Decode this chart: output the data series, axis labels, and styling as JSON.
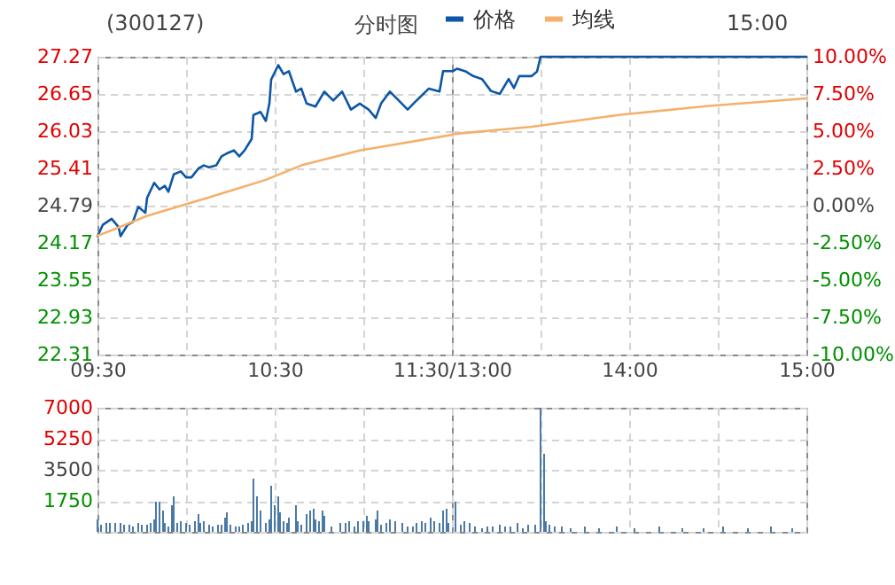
{
  "chart_data": [
    {
      "type": "line",
      "title": "(300127)",
      "subtitle": "分时图",
      "annotations": [
        "15:00"
      ],
      "xlim": [
        9.5,
        11.5
      ],
      "xticks": [
        {
          "value": 9.5,
          "label": "09:30"
        },
        {
          "value": 10,
          "label": null
        },
        {
          "value": 10.5,
          "label": "10:30"
        },
        {
          "value": 11,
          "label": null
        },
        {
          "value": 11.5,
          "label": "11:30/13:00"
        }
      ],
      "ylim": [
        22.31,
        27.27
      ],
      "yticks": [
        22.31,
        22.93,
        23.55,
        24.17,
        24.79,
        25.41,
        26.03,
        26.65,
        27.27
      ],
      "grid": true,
      "legend": "top",
      "series": [
        {
          "name": "价格",
          "color": "#0d56a6",
          "x": [
            9.5,
            9.53,
            9.58,
            9.62,
            9.63,
            9.67,
            9.7,
            9.73,
            9.77,
            9.78,
            9.82,
            9.85,
            9.88,
            9.9,
            9.93,
            9.97,
            10,
            10.03,
            10.07,
            10.1,
            10.13,
            10.17,
            10.2,
            10.23,
            10.27,
            10.3,
            10.33,
            10.37,
            10.38,
            10.42,
            10.45,
            10.47,
            10.48,
            10.52,
            10.55,
            10.58,
            10.62,
            10.65,
            10.68,
            10.73,
            10.78,
            10.83,
            10.88,
            10.93,
            10.98,
            11.03,
            11.07,
            11.1,
            11.15,
            11.2,
            11.25,
            11.3,
            11.37,
            11.43,
            11.45,
            11.5
          ],
          "values": [
            24.28,
            24.47,
            24.57,
            24.43,
            24.28,
            24.47,
            24.52,
            24.77,
            24.67,
            24.92,
            25.17,
            25.06,
            25.12,
            25.02,
            25.31,
            25.36,
            25.26,
            25.26,
            25.41,
            25.46,
            25.43,
            25.46,
            25.61,
            25.66,
            25.71,
            25.61,
            25.71,
            25.9,
            26.3,
            26.35,
            26.2,
            26.49,
            26.89,
            27.13,
            26.98,
            27.03,
            26.69,
            26.74,
            26.49,
            26.44,
            26.69,
            26.54,
            26.69,
            26.39,
            26.49,
            26.39,
            26.25,
            26.49,
            26.69,
            26.54,
            26.39,
            26.54,
            26.74,
            26.69,
            27.03,
            27.03
          ]
        },
        {
          "name": "均线",
          "color": "#f5b06a",
          "x": [
            9.5,
            9.58,
            9.78,
            10.12,
            10.45,
            10.65,
            10.98,
            11.5
          ],
          "values": [
            24.29,
            24.38,
            24.62,
            24.92,
            25.22,
            25.46,
            25.71,
            25.97
          ]
        }
      ]
    },
    {
      "type": "line",
      "grid": true,
      "xlim": [
        13,
        15
      ],
      "xticks": [
        {
          "value": 13,
          "label": null
        },
        {
          "value": 13.5,
          "label": null
        },
        {
          "value": 14,
          "label": "14:00"
        },
        {
          "value": 14.5,
          "label": null
        },
        {
          "value": 15,
          "label": "15:00"
        }
      ],
      "y2lim": [
        -10,
        10
      ],
      "y2ticks": [
        {
          "value": -10,
          "label": "-10.00%"
        },
        {
          "value": -7.5,
          "label": "-7.50%"
        },
        {
          "value": -5,
          "label": "-5.00%"
        },
        {
          "value": -2.5,
          "label": "-2.50%"
        },
        {
          "value": 0,
          "label": "0.00%"
        },
        {
          "value": 2.5,
          "label": "2.50%"
        },
        {
          "value": 5,
          "label": "5.00%"
        },
        {
          "value": 7.5,
          "label": "7.50%"
        },
        {
          "value": 10,
          "label": "10.00%"
        }
      ],
      "series": [
        {
          "color": "#0d56a6",
          "axis": "y2",
          "x": [
            13,
            13.03,
            13.08,
            13.12,
            13.17,
            13.22,
            13.27,
            13.32,
            13.35,
            13.38,
            13.45,
            13.48,
            13.5,
            15
          ],
          "values": [
            9.0,
            9.2,
            9.0,
            8.7,
            8.5,
            7.7,
            7.5,
            8.5,
            7.9,
            8.7,
            8.7,
            9.0,
            10,
            10
          ]
        },
        {
          "color": "#f5b06a",
          "axis": "y2",
          "x": [
            13,
            13.45,
            13.95,
            14.45,
            15
          ],
          "values": [
            4.8,
            5.3,
            6.1,
            6.7,
            7.2
          ]
        }
      ]
    },
    {
      "type": "bar",
      "color": "#4a79a5",
      "tick_labels": "y",
      "grid": true,
      "xlim": [
        9.5,
        11.5
      ],
      "xticks": [
        9.5,
        10,
        10.5,
        11,
        11.5
      ],
      "ylim": [
        0,
        7000
      ],
      "yticks": [
        {
          "value": 0,
          "label": null
        },
        1750,
        3500,
        5250,
        7000
      ],
      "x": [
        9.5,
        9.52,
        9.55,
        9.57,
        9.6,
        9.63,
        9.65,
        9.68,
        9.7,
        9.73,
        9.75,
        9.78,
        9.8,
        9.82,
        9.83,
        9.85,
        9.87,
        9.88,
        9.9,
        9.92,
        9.93,
        9.95,
        9.97,
        10,
        10.02,
        10.05,
        10.07,
        10.08,
        10.1,
        10.13,
        10.15,
        10.18,
        10.2,
        10.22,
        10.23,
        10.25,
        10.28,
        10.3,
        10.32,
        10.35,
        10.37,
        10.38,
        10.4,
        10.42,
        10.45,
        10.47,
        10.48,
        10.5,
        10.52,
        10.53,
        10.55,
        10.57,
        10.58,
        10.62,
        10.63,
        10.65,
        10.68,
        10.7,
        10.72,
        10.73,
        10.75,
        10.77,
        10.78,
        10.82,
        10.87,
        10.9,
        10.92,
        10.95,
        10.97,
        11,
        11.02,
        11.03,
        11.07,
        11.08,
        11.1,
        11.13,
        11.15,
        11.18,
        11.22,
        11.25,
        11.28,
        11.3,
        11.33,
        11.35,
        11.38,
        11.4,
        11.43,
        11.45,
        11.47,
        11.48
      ],
      "values": [
        700,
        400,
        500,
        500,
        500,
        500,
        400,
        400,
        300,
        500,
        400,
        400,
        500,
        700,
        1700,
        1700,
        1200,
        500,
        300,
        1500,
        2000,
        500,
        600,
        500,
        400,
        600,
        1000,
        500,
        600,
        400,
        300,
        400,
        400,
        800,
        1100,
        400,
        300,
        300,
        400,
        500,
        600,
        3000,
        2000,
        1200,
        500,
        700,
        2600,
        1500,
        2000,
        1100,
        600,
        500,
        800,
        1500,
        600,
        400,
        1000,
        1200,
        1300,
        700,
        600,
        1200,
        900,
        300,
        500,
        500,
        600,
        300,
        600,
        600,
        900,
        600,
        700,
        1200,
        400,
        500,
        700,
        600,
        500,
        300,
        300,
        500,
        600,
        500,
        800,
        600,
        500,
        1200,
        1300,
        500
      ]
    },
    {
      "type": "bar",
      "color": "#4a79a5",
      "tick_labels": false,
      "grid": true,
      "xlim": [
        13,
        15
      ],
      "xticks": [
        13,
        13.5,
        14,
        14.5,
        15
      ],
      "ylim": [
        0,
        7000
      ],
      "yticks": [
        0,
        1750,
        3500,
        5250,
        7000
      ],
      "x": [
        13.02,
        13.05,
        13.07,
        13.1,
        13.13,
        13.17,
        13.2,
        13.23,
        13.27,
        13.3,
        13.33,
        13.37,
        13.4,
        13.43,
        13.47,
        13.5,
        13.52,
        13.53,
        13.55,
        13.58,
        13.62,
        13.67,
        13.75,
        13.83,
        13.93,
        14.03,
        14.17,
        14.3,
        14.42,
        14.53,
        14.67,
        14.8,
        14.92
      ],
      "values": [
        1700,
        400,
        600,
        500,
        300,
        200,
        300,
        300,
        400,
        300,
        300,
        500,
        200,
        400,
        400,
        7000,
        4400,
        600,
        400,
        300,
        300,
        200,
        300,
        200,
        300,
        200,
        300,
        200,
        200,
        300,
        200,
        300,
        200
      ]
    }
  ]
}
